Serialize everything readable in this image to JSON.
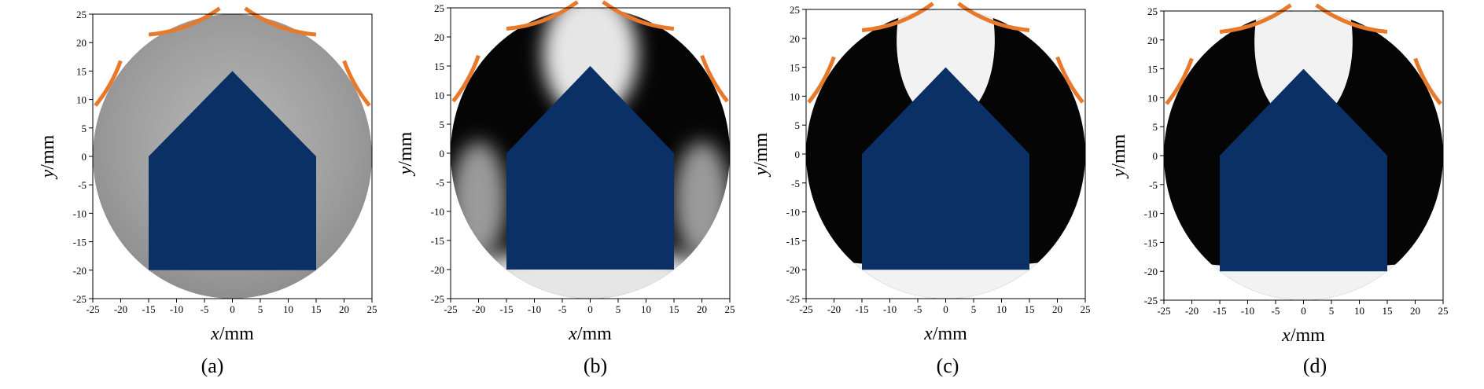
{
  "figure": {
    "panels": [
      {
        "label": "(a)",
        "style": "gray",
        "xlabel_var": "x",
        "xlabel_unit": "/mm",
        "ylabel_var": "y",
        "ylabel_unit": "/mm"
      },
      {
        "label": "(b)",
        "style": "smooth",
        "xlabel_var": "x",
        "xlabel_unit": "/mm",
        "ylabel_var": "y",
        "ylabel_unit": "/mm"
      },
      {
        "label": "(c)",
        "style": "sharp",
        "xlabel_var": "x",
        "xlabel_unit": "/mm",
        "ylabel_var": "y",
        "ylabel_unit": "/mm"
      },
      {
        "label": "(d)",
        "style": "sharp",
        "xlabel_var": "x",
        "xlabel_unit": "/mm",
        "ylabel_var": "y",
        "ylabel_unit": "/mm"
      }
    ],
    "x_ticks": [
      -25,
      -20,
      -15,
      -10,
      -5,
      0,
      5,
      10,
      15,
      20,
      25
    ],
    "y_ticks": [
      25,
      20,
      15,
      10,
      5,
      0,
      -5,
      -10,
      -15,
      -20,
      -25
    ],
    "xlim": [
      -25,
      25
    ],
    "ylim": [
      -25,
      25
    ],
    "circle_radius_mm": 25,
    "inclusion_polygon_mm": [
      [
        -15,
        0
      ],
      [
        0,
        15
      ],
      [
        15,
        0
      ],
      [
        15,
        -20
      ],
      [
        -15,
        -20
      ]
    ],
    "electrode_arcs_deg": [
      [
        95,
        125
      ],
      [
        55,
        85
      ],
      [
        140,
        160
      ],
      [
        20,
        40
      ]
    ],
    "colors": {
      "inclusion": "#0b3066",
      "electrode": "#e8782a",
      "background_gray": "#9a9a9a",
      "light": "#f2f2f2",
      "dark": "#050505",
      "axis": "#000000"
    }
  }
}
